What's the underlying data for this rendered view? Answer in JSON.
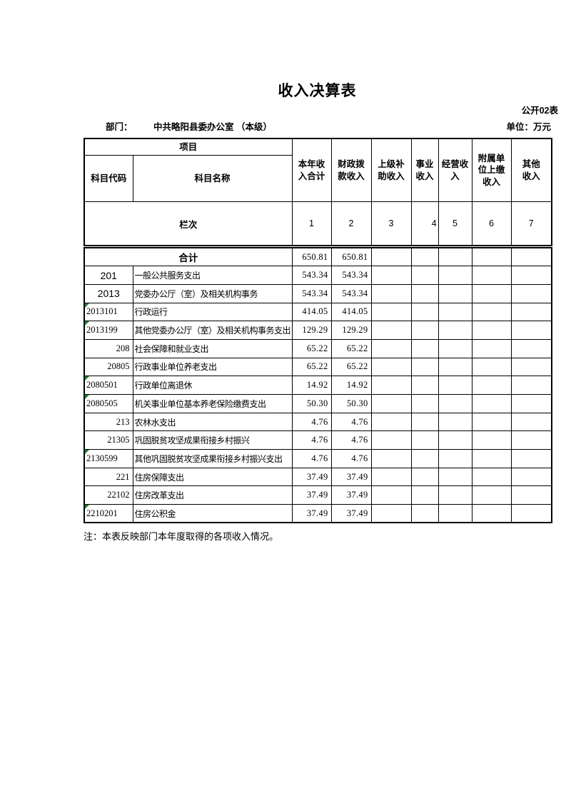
{
  "page": {
    "title": "收入决算表",
    "table_code": "公开02表",
    "dept_label": "部门：",
    "dept_value": "中共略阳县委办公室 （本级）",
    "unit_label": "单位：万元",
    "note": "注：本表反映部门本年度取得的各项收入情况。"
  },
  "table": {
    "group_header": "项目",
    "col_code": "科目代​码",
    "col_name": "科目名称",
    "value_columns": [
      "本年收入合计",
      "财政拨款收入",
      "上级补助收入",
      "事业收入",
      "经营收入",
      "附属单位上缴收入",
      "其他收入"
    ],
    "lane_label": "栏次",
    "lane_numbers": [
      "1",
      "2",
      "3",
      "4",
      "5",
      "6",
      "7"
    ],
    "total_label": "合计",
    "total_values": [
      "650.81",
      "650.81",
      "",
      "",
      "",
      "",
      ""
    ],
    "rows": [
      {
        "code": "201",
        "name": "一般公共服务支出",
        "values": [
          "543.34",
          "543.34",
          "",
          "",
          "",
          "",
          ""
        ],
        "code_class": "sans-center",
        "flag": false
      },
      {
        "code": "2013",
        "name": "党委办公厅（室）及相关机构事务",
        "values": [
          "543.34",
          "543.34",
          "",
          "",
          "",
          "",
          ""
        ],
        "code_class": "sans-center",
        "flag": false
      },
      {
        "code": "2013101",
        "name": "行政运行",
        "values": [
          "414.05",
          "414.05",
          "",
          "",
          "",
          "",
          ""
        ],
        "code_class": "left",
        "flag": true
      },
      {
        "code": "2013199",
        "name": "其他党委办公厅（室）及相关机构事务支出",
        "values": [
          "129.29",
          "129.29",
          "",
          "",
          "",
          "",
          ""
        ],
        "code_class": "left",
        "flag": true
      },
      {
        "code": "208",
        "name": "社会保障和就业支出",
        "values": [
          "65.22",
          "65.22",
          "",
          "",
          "",
          "",
          ""
        ],
        "code_class": "right",
        "flag": false
      },
      {
        "code": "20805",
        "name": "行政事业单位养老支出",
        "values": [
          "65.22",
          "65.22",
          "",
          "",
          "",
          "",
          ""
        ],
        "code_class": "right",
        "flag": false
      },
      {
        "code": "2080501",
        "name": "行政单位离退休",
        "values": [
          "14.92",
          "14.92",
          "",
          "",
          "",
          "",
          ""
        ],
        "code_class": "left",
        "flag": true
      },
      {
        "code": "2080505",
        "name": "机关事业单位基本养老保险缴费支出",
        "values": [
          "50.30",
          "50.30",
          "",
          "",
          "",
          "",
          ""
        ],
        "code_class": "left",
        "flag": true
      },
      {
        "code": "213",
        "name": "农林水支出",
        "values": [
          "4.76",
          "4.76",
          "",
          "",
          "",
          "",
          ""
        ],
        "code_class": "right",
        "flag": false
      },
      {
        "code": "21305",
        "name": "巩固脱贫攻坚成果衔接乡村振兴",
        "values": [
          "4.76",
          "4.76",
          "",
          "",
          "",
          "",
          ""
        ],
        "code_class": "right",
        "flag": false
      },
      {
        "code": "2130599",
        "name": "其他巩固脱贫攻坚成果衔接乡村振兴支出",
        "values": [
          "4.76",
          "4.76",
          "",
          "",
          "",
          "",
          ""
        ],
        "code_class": "left",
        "flag": true
      },
      {
        "code": "221",
        "name": "住房保障支出",
        "values": [
          "37.49",
          "37.49",
          "",
          "",
          "",
          "",
          ""
        ],
        "code_class": "right",
        "flag": false
      },
      {
        "code": "22102",
        "name": "住房改革支出",
        "values": [
          "37.49",
          "37.49",
          "",
          "",
          "",
          "",
          ""
        ],
        "code_class": "right",
        "flag": false
      },
      {
        "code": "2210201",
        "name": "住房公积金",
        "values": [
          "37.49",
          "37.49",
          "",
          "",
          "",
          "",
          ""
        ],
        "code_class": "left",
        "flag": true
      }
    ]
  },
  "colors": {
    "flag_green": "#1f8038",
    "border": "#000000",
    "background": "#ffffff"
  }
}
